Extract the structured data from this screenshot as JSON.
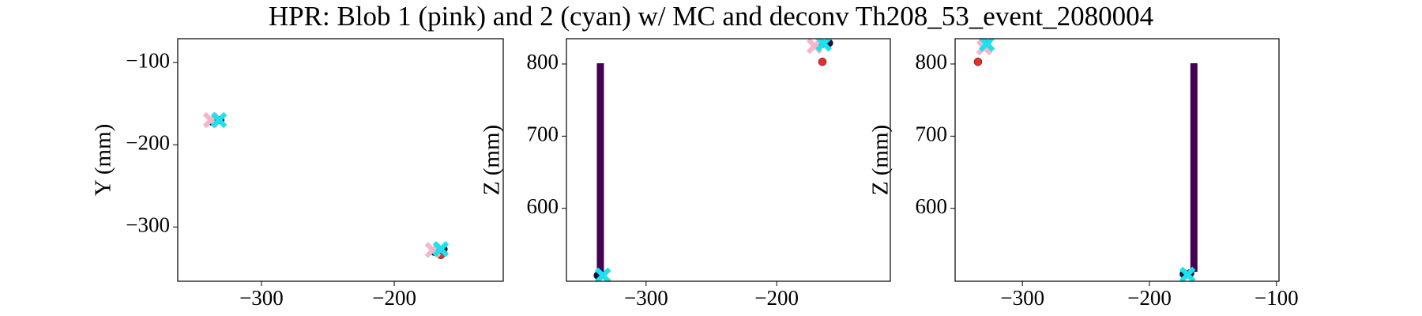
{
  "title": "HPR: Blob 1 (pink) and 2 (cyan) w/ MC and deconv Th208_53_event_2080004",
  "chart_data": [
    {
      "type": "scatter",
      "ylabel": "Y (mm)",
      "xlim": [
        -363,
        -118
      ],
      "ylim": [
        -366,
        -71
      ],
      "xticks": [
        {
          "value": -300,
          "label": "−300"
        },
        {
          "value": -200,
          "label": "−200"
        }
      ],
      "yticks": [
        {
          "value": -100,
          "label": "−100"
        },
        {
          "value": -200,
          "label": "−200"
        },
        {
          "value": -300,
          "label": "−300"
        }
      ],
      "bars": [],
      "series": [
        {
          "color": "#1a1040",
          "marker": "o",
          "x": [
            -337,
            -331,
            -170,
            -163
          ],
          "y": [
            -172,
            -170,
            -330,
            -327
          ]
        },
        {
          "color": "#e8302a",
          "marker": "o",
          "x": [
            -165
          ],
          "y": [
            -334
          ]
        },
        {
          "color": "#f4b6c8",
          "marker": "X",
          "x": [
            -338,
            -171
          ],
          "y": [
            -170,
            -328
          ]
        },
        {
          "color": "#19e3ee",
          "marker": "X",
          "x": [
            -332,
            -165
          ],
          "y": [
            -170,
            -327
          ]
        }
      ]
    },
    {
      "type": "scatter",
      "ylabel": "Z (mm)",
      "xlim": [
        -361,
        -113
      ],
      "ylim": [
        499,
        835
      ],
      "xticks": [
        {
          "value": -300,
          "label": "−300"
        },
        {
          "value": -200,
          "label": "−200"
        }
      ],
      "yticks": [
        600,
        700,
        800
      ],
      "bars": [
        {
          "color": "#440154",
          "x": [
            -335
          ],
          "y0": [
            502
          ],
          "y1": [
            801
          ]
        }
      ],
      "series": [
        {
          "color": "#1a1040",
          "marker": "o",
          "x": [
            -337,
            -165,
            -160
          ],
          "y": [
            507,
            828,
            829
          ]
        },
        {
          "color": "#e8302a",
          "marker": "o",
          "x": [
            -165
          ],
          "y": [
            803
          ]
        },
        {
          "color": "#f4b6c8",
          "marker": "X",
          "x": [
            -171
          ],
          "y": [
            825
          ]
        },
        {
          "color": "#19e3ee",
          "marker": "X",
          "x": [
            -333,
            -164
          ],
          "y": [
            507,
            828
          ]
        }
      ]
    },
    {
      "type": "scatter",
      "ylabel": "Z (mm)",
      "xlim": [
        -353,
        -98
      ],
      "ylim": [
        499,
        835
      ],
      "xticks": [
        {
          "value": -300,
          "label": "−300"
        },
        {
          "value": -200,
          "label": "−200"
        },
        {
          "value": -100,
          "label": "−100"
        }
      ],
      "yticks": [
        600,
        700,
        800
      ],
      "bars": [
        {
          "color": "#440154",
          "x": [
            -165
          ],
          "y0": [
            512
          ],
          "y1": [
            801
          ]
        }
      ],
      "series": [
        {
          "color": "#1a1040",
          "marker": "o",
          "x": [
            -330,
            -173,
            -168
          ],
          "y": [
            829,
            509,
            510
          ]
        },
        {
          "color": "#e8302a",
          "marker": "o",
          "x": [
            -335
          ],
          "y": [
            803
          ]
        },
        {
          "color": "#f4b6c8",
          "marker": "X",
          "x": [
            -330
          ],
          "y": [
            823
          ]
        },
        {
          "color": "#19e3ee",
          "marker": "X",
          "x": [
            -328,
            -170
          ],
          "y": [
            828,
            508
          ]
        }
      ]
    }
  ]
}
